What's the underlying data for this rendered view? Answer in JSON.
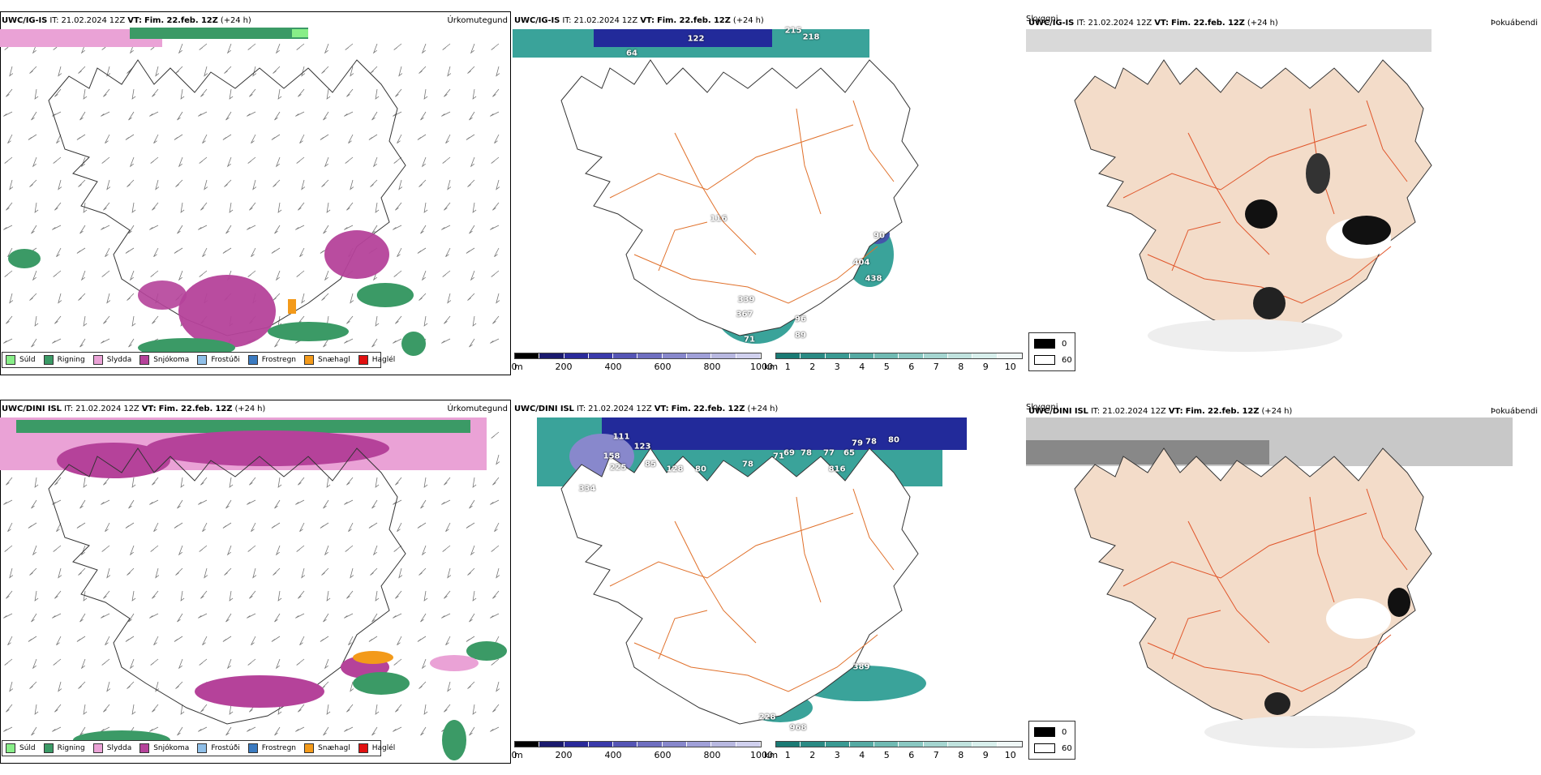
{
  "colors": {
    "suld": "#88ee88",
    "rigning": "#3b9a66",
    "slydda": "#eaa2d6",
    "snjokoma": "#b5429a",
    "frostudi": "#8fbfe8",
    "frostregn": "#3a7ac0",
    "snaehagl": "#f39a1a",
    "haglel": "#e01010",
    "cloud_teal": "#3aa39a",
    "cloud_blue": "#222a9a",
    "land_fog": "#f3dcc9",
    "road": "#e0702a"
  },
  "precip_legend": [
    {
      "key": "suld",
      "label": "Súld"
    },
    {
      "key": "rigning",
      "label": "Rigning"
    },
    {
      "key": "slydda",
      "label": "Slydda"
    },
    {
      "key": "snjokoma",
      "label": "Snjókoma"
    },
    {
      "key": "frostudi",
      "label": "Frostúði"
    },
    {
      "key": "frostregn",
      "label": "Frostregn"
    },
    {
      "key": "snaehagl",
      "label": "Snæhagl"
    },
    {
      "key": "haglel",
      "label": "Haglél"
    }
  ],
  "rows": [
    {
      "model": "UWC/IG-IS",
      "it_label": "IT:",
      "it_value": "21.02.2024 12Z",
      "vt_label": "VT:",
      "vt_value": "Fim. 22.feb. 12Z",
      "lead": "(+24 h)",
      "precip_title": "Úrkomutegund",
      "cloud_numbers": [
        "122",
        "215",
        "218",
        "64",
        "116",
        "90",
        "404",
        "438",
        "339",
        "367",
        "71",
        "89",
        "96"
      ],
      "fog_left_title": "Skyggni",
      "fog_right_title": "Þokuábendi"
    },
    {
      "model": "UWC/DINI ISL",
      "it_label": "IT:",
      "it_value": "21.02.2024 12Z",
      "vt_label": "VT:",
      "vt_value": "Fim. 22.feb. 12Z",
      "lead": "(+24 h)",
      "precip_title": "Úrkomutegund",
      "cloud_numbers": [
        "111",
        "123",
        "158",
        "225",
        "85",
        "128",
        "80",
        "78",
        "71",
        "69",
        "78",
        "77",
        "65",
        "816",
        "79",
        "78",
        "80",
        "334",
        "389",
        "228",
        "968"
      ],
      "fog_left_title": "Skyggni",
      "fog_right_title": "Þokuábendi"
    }
  ],
  "cloudbase_legend": {
    "unit": "m",
    "ticks": [
      "0",
      "200",
      "400",
      "600",
      "800",
      "1000"
    ]
  },
  "visibility_legend": {
    "unit": "km",
    "ticks": [
      "1",
      "2",
      "3",
      "4",
      "5",
      "6",
      "7",
      "8",
      "9",
      "10"
    ]
  },
  "fog_legend": {
    "items": [
      {
        "label": "0",
        "color": "#000000"
      },
      {
        "label": "60",
        "color": "#ffffff"
      }
    ]
  }
}
